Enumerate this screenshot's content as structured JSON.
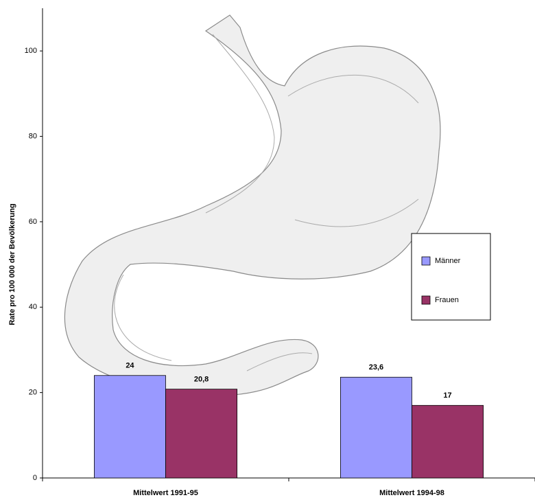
{
  "chart_data": {
    "type": "bar",
    "ylabel": "Rate pro 100 000 der Bevölkerung",
    "categories": [
      "Mittelwert 1991-95",
      "Mittelwert 1994-98"
    ],
    "series": [
      {
        "name": "Männer",
        "color": "#9999ff",
        "values": [
          24,
          23.6
        ],
        "value_labels": [
          "24",
          "23,6"
        ]
      },
      {
        "name": "Frauen",
        "color": "#993366",
        "values": [
          20.8,
          17
        ],
        "value_labels": [
          "20,8",
          "17"
        ]
      }
    ],
    "ylim": [
      0,
      110
    ],
    "yticks": [
      0,
      20,
      40,
      60,
      80,
      100
    ],
    "legend": "right"
  }
}
